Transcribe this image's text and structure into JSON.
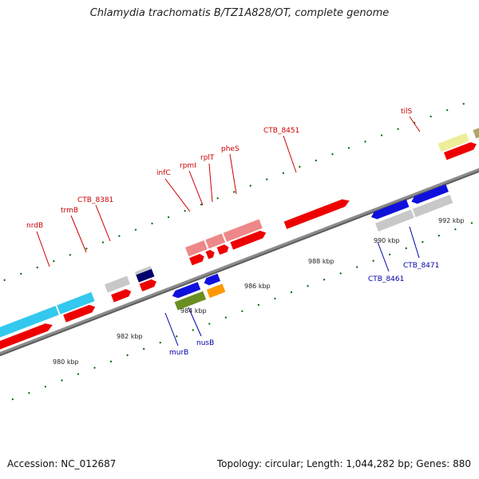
{
  "title": "Chlamydia trachomatis B/TZ1A828/OT, complete genome",
  "accession": "Accession: NC_012687",
  "summary": "Topology: circular; Length: 1,044,282 bp; Genes: 880",
  "scale_labels": [
    "980 kbp",
    "982 kbp",
    "984 kbp",
    "986 kbp",
    "988 kbp",
    "990 kbp",
    "992 kbp"
  ],
  "gene_labels": {
    "nrdB": "nrdB",
    "trmB": "trmB",
    "ctb8381": "CTB_8381",
    "infC": "infC",
    "rpmI": "rpmI",
    "rplT": "rplT",
    "pheS": "pheS",
    "ctb8451": "CTB_8451",
    "tilS": "tilS",
    "murB": "murB",
    "nusB": "nusB",
    "ctb8461": "CTB_8461",
    "ctb8471": "CTB_8471"
  },
  "colors": {
    "backbone": "#8c8c8c",
    "cds": "#ee0000",
    "rna_cyan": "#33c8ee",
    "gray": "#c8c8c8",
    "pink": "#ee8888",
    "khaki": "#aaaa66",
    "pale_yellow": "#eeee99",
    "blue": "#1010dd",
    "olive": "#6b8e23",
    "orange": "#ff9900",
    "navy": "#00006b",
    "tick": "#006600",
    "label_top": "#cc0000",
    "label_bottom": "#0000aa"
  }
}
